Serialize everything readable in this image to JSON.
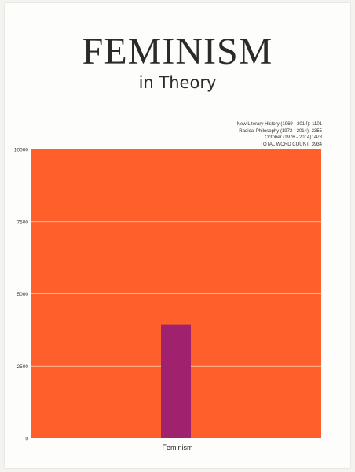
{
  "title": "FEMINISM",
  "subtitle": "in Theory",
  "legend": [
    {
      "label": "New Literary History (1969 - 2014):",
      "value": "1101"
    },
    {
      "label": "Radical Philosophy (1972 - 2014):",
      "value": "2355"
    },
    {
      "label": "October (1976 - 2014):",
      "value": "478"
    },
    {
      "label": "TOTAL WORD COUNT:",
      "value": "3934"
    }
  ],
  "colors": {
    "background": "#ff5f2a",
    "bar": "#a0226f",
    "grid": "#ffd4bf"
  },
  "chart_data": {
    "type": "bar",
    "categories": [
      "Feminism"
    ],
    "values": [
      3934
    ],
    "ylim": [
      0,
      10000
    ],
    "yticks": [
      "0",
      "2500",
      "5000",
      "7500",
      "10000"
    ],
    "ytick_values": [
      0,
      2500,
      5000,
      7500,
      10000
    ],
    "grid": true
  }
}
